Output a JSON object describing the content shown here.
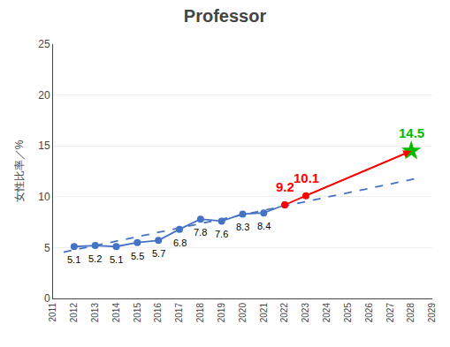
{
  "chart_data": {
    "type": "line",
    "title": "Professor",
    "ylabel": "女性比率／%",
    "xlim": [
      2011,
      2029
    ],
    "xticks": [
      2011,
      2012,
      2013,
      2014,
      2015,
      2016,
      2017,
      2018,
      2019,
      2020,
      2021,
      2022,
      2023,
      2024,
      2025,
      2026,
      2027,
      2028,
      2029
    ],
    "ylim": [
      0,
      25
    ],
    "yticks": [
      0,
      5,
      10,
      15,
      20,
      25
    ],
    "grid": "y",
    "series": [
      {
        "x": [
          2011.5,
          2028.5
        ],
        "values": [
          4.55,
          11.9
        ],
        "color": "#4472c4",
        "line_style": "dashed"
      },
      {
        "x": [
          2012,
          2013,
          2014,
          2015,
          2016,
          2017,
          2018,
          2019,
          2020,
          2021,
          2022
        ],
        "values": [
          5.1,
          5.2,
          5.1,
          5.5,
          5.7,
          6.8,
          7.8,
          7.6,
          8.3,
          8.4,
          9.2
        ],
        "color": "#4472c4",
        "line_style": "solid",
        "marker": "circle"
      },
      {
        "x": [
          2022,
          2023
        ],
        "values": [
          9.2,
          10.1
        ],
        "color": "red",
        "line_style": "solid",
        "marker": "circle"
      },
      {
        "x": [
          2023,
          2028
        ],
        "values": [
          10.1,
          14.5
        ],
        "color": "red",
        "line_style": "arrow"
      },
      {
        "type": "scatter",
        "x": [
          2028
        ],
        "values": [
          14.5
        ],
        "color": "#00bb00",
        "line_style": "none",
        "marker": "star"
      }
    ],
    "annotations": [
      {
        "x": 2012,
        "y": 5.1,
        "text": "5.1",
        "color": "black"
      },
      {
        "x": 2013,
        "y": 5.2,
        "text": "5.2",
        "color": "black"
      },
      {
        "x": 2014,
        "y": 5.1,
        "text": "5.1",
        "color": "black"
      },
      {
        "x": 2015,
        "y": 5.5,
        "text": "5.5",
        "color": "black"
      },
      {
        "x": 2016,
        "y": 5.7,
        "text": "5.7",
        "color": "black"
      },
      {
        "x": 2017,
        "y": 6.8,
        "text": "6.8",
        "color": "black"
      },
      {
        "x": 2018,
        "y": 7.8,
        "text": "7.8",
        "color": "black"
      },
      {
        "x": 2019,
        "y": 7.6,
        "text": "7.6",
        "color": "black"
      },
      {
        "x": 2020,
        "y": 8.3,
        "text": "8.3",
        "color": "black"
      },
      {
        "x": 2021,
        "y": 8.4,
        "text": "8.4",
        "color": "black"
      },
      {
        "x": 2022,
        "y": 9.2,
        "text": "9.2",
        "color": "red"
      },
      {
        "x": 2023,
        "y": 10.1,
        "text": "10.1",
        "color": "red"
      },
      {
        "x": 2028,
        "y": 14.5,
        "text": "14.5",
        "color": "#00bb00"
      }
    ]
  }
}
